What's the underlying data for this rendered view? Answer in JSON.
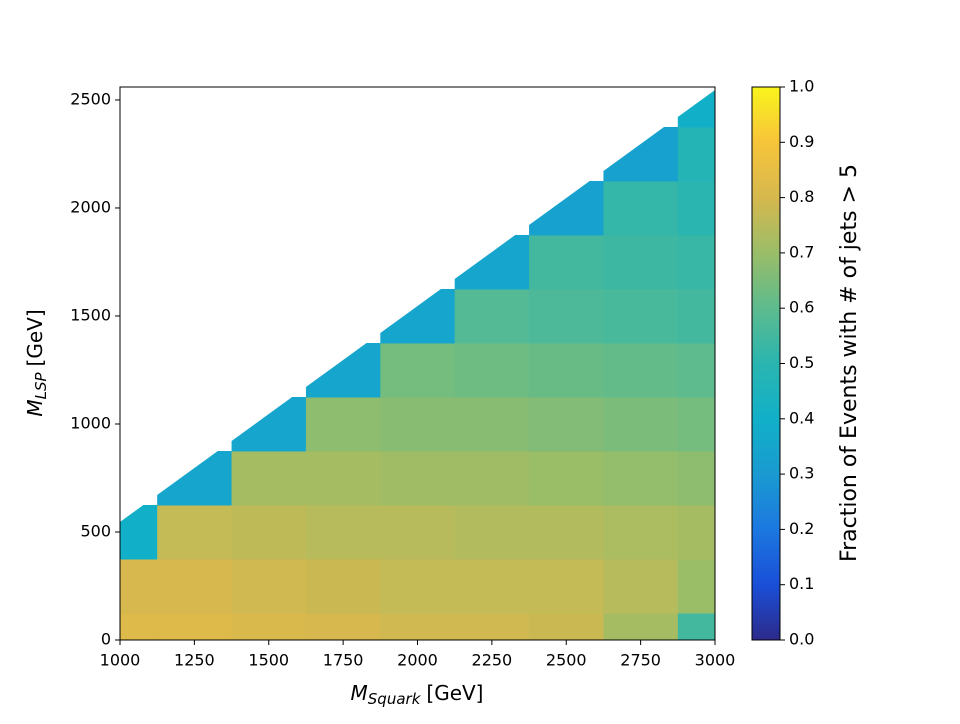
{
  "chart_data": {
    "type": "heatmap",
    "xlabel": {
      "main": "M",
      "sub": "Squark",
      "unit": "[GeV]"
    },
    "ylabel": {
      "main": "M",
      "sub": "LSP",
      "unit": "[GeV]"
    },
    "colorbar_label": "Fraction of Events with # of jets > 5",
    "x": [
      1000,
      1250,
      1500,
      1750,
      2000,
      2250,
      2500,
      2750,
      3000
    ],
    "y": [
      0,
      250,
      500,
      750,
      1000,
      1250,
      1500,
      1750,
      2000,
      2250,
      2500
    ],
    "z": [
      [
        0.82,
        0.82,
        0.81,
        0.8,
        0.79,
        0.79,
        0.78,
        0.72,
        0.55
      ],
      [
        0.8,
        0.8,
        0.79,
        0.78,
        0.77,
        0.77,
        0.77,
        0.75,
        0.7
      ],
      [
        0.4,
        0.77,
        0.76,
        0.75,
        0.75,
        0.74,
        0.74,
        0.73,
        0.72
      ],
      [
        null,
        0.35,
        0.72,
        0.72,
        0.71,
        0.71,
        0.7,
        0.69,
        0.68
      ],
      [
        null,
        null,
        0.35,
        0.68,
        0.67,
        0.67,
        0.66,
        0.65,
        0.64
      ],
      [
        null,
        null,
        null,
        0.35,
        0.64,
        0.63,
        0.62,
        0.61,
        0.6
      ],
      [
        null,
        null,
        null,
        null,
        0.35,
        0.58,
        0.57,
        0.56,
        0.55
      ],
      [
        null,
        null,
        null,
        null,
        null,
        0.35,
        0.55,
        0.54,
        0.53
      ],
      [
        null,
        null,
        null,
        null,
        null,
        null,
        0.33,
        0.52,
        0.5
      ],
      [
        null,
        null,
        null,
        null,
        null,
        null,
        null,
        0.33,
        0.48
      ],
      [
        null,
        null,
        null,
        null,
        null,
        null,
        null,
        null,
        0.4
      ]
    ],
    "xlim": [
      1000,
      3000
    ],
    "ylim": [
      0,
      2560
    ],
    "xticks": [
      1000,
      1250,
      1500,
      1750,
      2000,
      2250,
      2500,
      2750,
      3000
    ],
    "yticks": [
      0,
      500,
      1000,
      1500,
      2000,
      2500
    ],
    "zlim": [
      0,
      1
    ],
    "zticks": [
      {
        "value": 0,
        "label": "0.0"
      },
      0.1,
      0.2,
      0.3,
      0.4,
      0.5,
      0.6,
      0.7,
      0.8,
      0.9,
      {
        "value": 1,
        "label": "1.0"
      }
    ],
    "colormap": [
      "#2c2a8a",
      "#1a4fd8",
      "#1c78e0",
      "#1a9ad0",
      "#11b0c8",
      "#2ab5b0",
      "#5dbb8e",
      "#9abd68",
      "#d6b84e",
      "#f7c43a",
      "#f9f41c"
    ]
  }
}
